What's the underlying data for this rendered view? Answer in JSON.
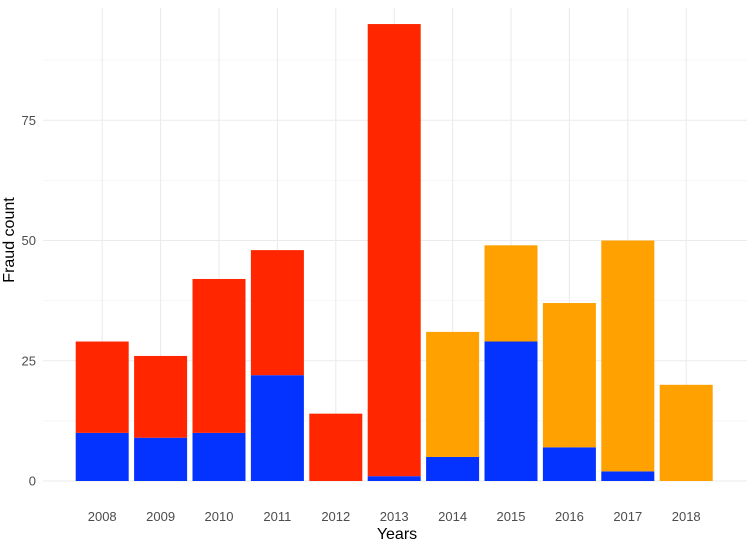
{
  "chart_data": {
    "type": "bar",
    "stacked": true,
    "title": "",
    "xlabel": "Years",
    "ylabel": "Fraud count",
    "categories": [
      "2008",
      "2009",
      "2010",
      "2011",
      "2012",
      "2013",
      "2014",
      "2015",
      "2016",
      "2017",
      "2018"
    ],
    "y_ticks": [
      0,
      25,
      50,
      75
    ],
    "ylim": [
      0,
      100
    ],
    "grid": true,
    "legend": "none",
    "series": [
      {
        "color": "#0433ff",
        "values": [
          10,
          9,
          10,
          22,
          0,
          1,
          5,
          29,
          7,
          2,
          0
        ]
      },
      {
        "color": "#ff2600",
        "values": [
          19,
          17,
          32,
          26,
          14,
          94,
          0,
          0,
          0,
          0,
          0
        ]
      },
      {
        "color": "#ffa100",
        "values": [
          0,
          0,
          0,
          0,
          0,
          0,
          26,
          20,
          30,
          48,
          20
        ]
      }
    ]
  }
}
